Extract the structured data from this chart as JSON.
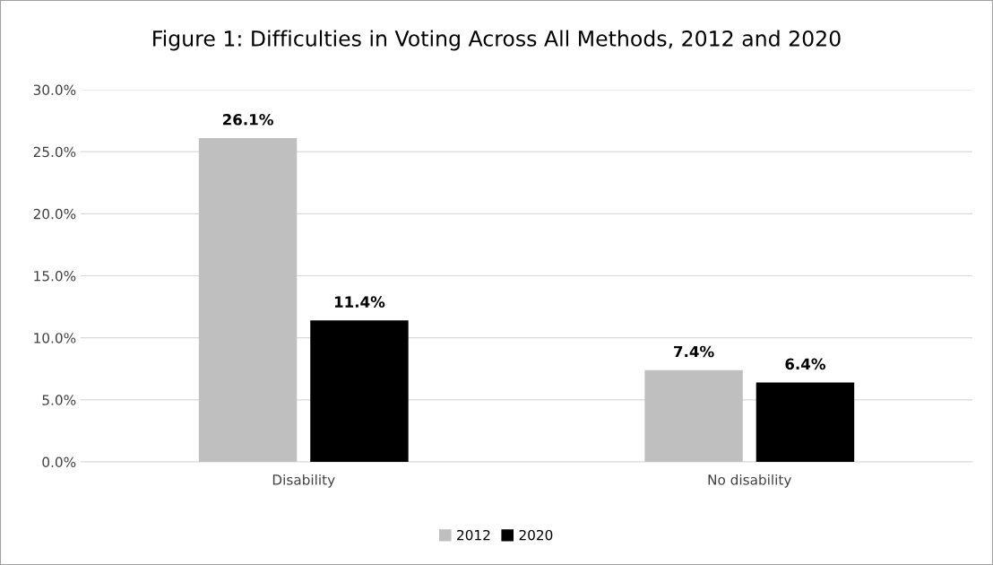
{
  "chart_data": {
    "type": "bar",
    "title": "Figure 1: Difficulties in Voting Across All Methods, 2012 and 2020",
    "categories": [
      "Disability",
      "No disability"
    ],
    "series": [
      {
        "name": "2012",
        "color": "#bfbfbf",
        "values": [
          26.1,
          7.4
        ],
        "value_labels": [
          "26.1%",
          "7.4%"
        ]
      },
      {
        "name": "2020",
        "color": "#000000",
        "values": [
          11.4,
          6.4
        ],
        "value_labels": [
          "11.4%",
          "6.4%"
        ]
      }
    ],
    "ylim": [
      0,
      30
    ],
    "yticks": [
      {
        "value": 0,
        "label": "0.0%"
      },
      {
        "value": 5,
        "label": "5.0%"
      },
      {
        "value": 10,
        "label": "10.0%"
      },
      {
        "value": 15,
        "label": "15.0%"
      },
      {
        "value": 20,
        "label": "20.0%"
      },
      {
        "value": 25,
        "label": "25.0%"
      },
      {
        "value": 30,
        "label": "30.0%"
      }
    ],
    "grid": "y",
    "legend": "bottom"
  }
}
